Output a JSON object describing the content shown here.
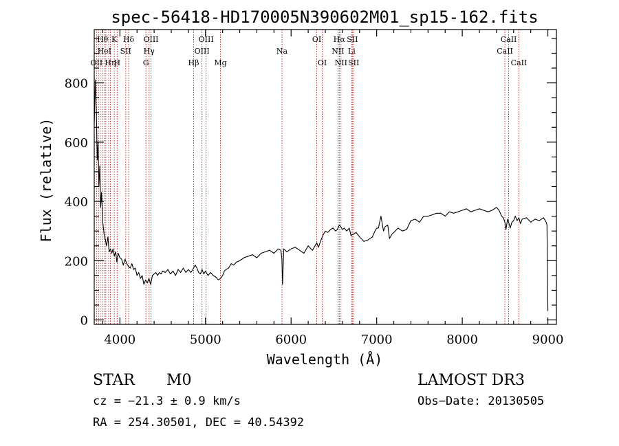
{
  "chart_data": {
    "type": "line",
    "title": "spec-56418-HD170005N390602M01_sp15-162.fits",
    "xlabel": "Wavelength (Å)",
    "ylabel": "Flux (relative)",
    "xlim": [
      3700,
      9100
    ],
    "ylim": [
      -15,
      980
    ],
    "x_ticks": [
      4000,
      5000,
      6000,
      7000,
      8000,
      9000
    ],
    "y_ticks": [
      0,
      200,
      400,
      600,
      800
    ],
    "grid": false,
    "lines": [
      {
        "wavelength": 3727,
        "label": "OII",
        "row": 2
      },
      {
        "wavelength": 3750,
        "label": "",
        "row": 0
      },
      {
        "wavelength": 3771,
        "label": "",
        "row": 0
      },
      {
        "wavelength": 3798,
        "label": "Hθ",
        "row": 0
      },
      {
        "wavelength": 3820,
        "label": "HeI",
        "row": 1
      },
      {
        "wavelength": 3835,
        "label": "",
        "row": 0
      },
      {
        "wavelength": 3869,
        "label": "",
        "row": 0
      },
      {
        "wavelength": 3889,
        "label": "Hη",
        "row": 2
      },
      {
        "wavelength": 3934,
        "label": "K",
        "row": 0
      },
      {
        "wavelength": 3968,
        "label": "H",
        "row": 2
      },
      {
        "wavelength": 4068,
        "label": "SII",
        "row": 1
      },
      {
        "wavelength": 4102,
        "label": "Hδ",
        "row": 0
      },
      {
        "wavelength": 4304,
        "label": "G",
        "row": 2
      },
      {
        "wavelength": 4341,
        "label": "Hγ",
        "row": 1
      },
      {
        "wavelength": 4363,
        "label": "OIII",
        "row": 0
      },
      {
        "wavelength": 4861,
        "label": "Hβ",
        "row": 2
      },
      {
        "wavelength": 4959,
        "label": "OIII",
        "row": 1
      },
      {
        "wavelength": 5007,
        "label": "OIII",
        "row": 0
      },
      {
        "wavelength": 5175,
        "label": "Mg",
        "row": 2
      },
      {
        "wavelength": 5894,
        "label": "Na",
        "row": 1
      },
      {
        "wavelength": 6300,
        "label": "OI",
        "row": 0
      },
      {
        "wavelength": 6364,
        "label": "OI",
        "row": 2
      },
      {
        "wavelength": 6548,
        "label": "NII",
        "row": 1
      },
      {
        "wavelength": 6563,
        "label": "Hα",
        "row": 0
      },
      {
        "wavelength": 6583,
        "label": "NII",
        "row": 2
      },
      {
        "wavelength": 6708,
        "label": "Li",
        "row": 1
      },
      {
        "wavelength": 6716,
        "label": "SII",
        "row": 0
      },
      {
        "wavelength": 6731,
        "label": "SII",
        "row": 2
      },
      {
        "wavelength": 8498,
        "label": "CaII",
        "row": 1
      },
      {
        "wavelength": 8542,
        "label": "CaII",
        "row": 0
      },
      {
        "wavelength": 8662,
        "label": "CaII",
        "row": 2
      }
    ],
    "series": [
      {
        "x": [
          3700,
          3712,
          3725,
          3735,
          3745,
          3755,
          3765,
          3775,
          3785,
          3800,
          3815,
          3830,
          3845,
          3860,
          3875,
          3890,
          3905,
          3920,
          3935,
          3950,
          3965,
          3980,
          4000,
          4020,
          4040,
          4060,
          4080,
          4100,
          4120,
          4140,
          4160,
          4180,
          4200,
          4220,
          4240,
          4260,
          4280,
          4300,
          4320,
          4340,
          4360,
          4380,
          4400,
          4420,
          4440,
          4460,
          4480,
          4500,
          4530,
          4560,
          4590,
          4620,
          4650,
          4680,
          4710,
          4740,
          4770,
          4800,
          4830,
          4860,
          4880,
          4900,
          4920,
          4940,
          4960,
          4980,
          5000,
          5030,
          5060,
          5090,
          5120,
          5150,
          5175,
          5200,
          5220,
          5240,
          5270,
          5300,
          5330,
          5360,
          5400,
          5450,
          5500,
          5550,
          5600,
          5650,
          5700,
          5750,
          5800,
          5850,
          5880,
          5893,
          5900,
          5915,
          5950,
          6000,
          6050,
          6100,
          6150,
          6200,
          6250,
          6280,
          6300,
          6320,
          6350,
          6380,
          6400,
          6430,
          6460,
          6490,
          6520,
          6540,
          6563,
          6580,
          6600,
          6620,
          6650,
          6680,
          6700,
          6730,
          6760,
          6800,
          6850,
          6900,
          6950,
          6980,
          7000,
          7020,
          7050,
          7080,
          7100,
          7130,
          7150,
          7180,
          7200,
          7250,
          7300,
          7350,
          7400,
          7450,
          7500,
          7550,
          7600,
          7650,
          7700,
          7750,
          7800,
          7850,
          7900,
          7950,
          8000,
          8050,
          8100,
          8150,
          8200,
          8250,
          8300,
          8350,
          8400,
          8430,
          8460,
          8480,
          8498,
          8510,
          8530,
          8542,
          8560,
          8580,
          8600,
          8620,
          8640,
          8662,
          8680,
          8700,
          8750,
          8800,
          8850,
          8900,
          8950,
          8980,
          8990,
          9000
        ],
        "y": [
          660,
          810,
          700,
          540,
          600,
          450,
          520,
          380,
          430,
          330,
          290,
          270,
          250,
          280,
          230,
          240,
          225,
          240,
          215,
          230,
          195,
          225,
          210,
          205,
          185,
          205,
          190,
          180,
          175,
          190,
          170,
          175,
          150,
          160,
          140,
          150,
          120,
          135,
          125,
          140,
          120,
          150,
          155,
          160,
          150,
          160,
          155,
          165,
          160,
          170,
          155,
          165,
          150,
          170,
          160,
          175,
          160,
          170,
          160,
          175,
          185,
          175,
          160,
          155,
          170,
          155,
          165,
          150,
          160,
          150,
          145,
          135,
          140,
          150,
          165,
          170,
          175,
          190,
          185,
          195,
          200,
          210,
          215,
          220,
          210,
          225,
          230,
          235,
          225,
          240,
          235,
          205,
          120,
          240,
          230,
          240,
          245,
          235,
          225,
          250,
          235,
          250,
          260,
          245,
          270,
          290,
          300,
          295,
          305,
          310,
          300,
          305,
          320,
          315,
          305,
          310,
          300,
          310,
          285,
          290,
          295,
          280,
          265,
          270,
          280,
          300,
          310,
          310,
          350,
          300,
          315,
          320,
          275,
          290,
          295,
          310,
          300,
          305,
          335,
          340,
          330,
          350,
          350,
          355,
          360,
          360,
          350,
          365,
          360,
          365,
          370,
          375,
          365,
          370,
          375,
          370,
          365,
          370,
          380,
          370,
          350,
          345,
          330,
          305,
          340,
          330,
          310,
          330,
          335,
          350,
          335,
          345,
          325,
          340,
          345,
          330,
          340,
          335,
          345,
          330,
          320,
          30
        ]
      }
    ]
  },
  "info": {
    "object_class": "STAR",
    "subclass": "M0",
    "redshift": "cz = −21.3 ± 0.9 km/s",
    "coords": "RA = 254.30501, DEC =  40.54392",
    "survey": "LAMOST DR3",
    "obs_date": "Obs−Date: 20130505"
  },
  "colors": {
    "axis": "#000000",
    "spectrum": "#000000",
    "line_marker": "#b22222"
  }
}
